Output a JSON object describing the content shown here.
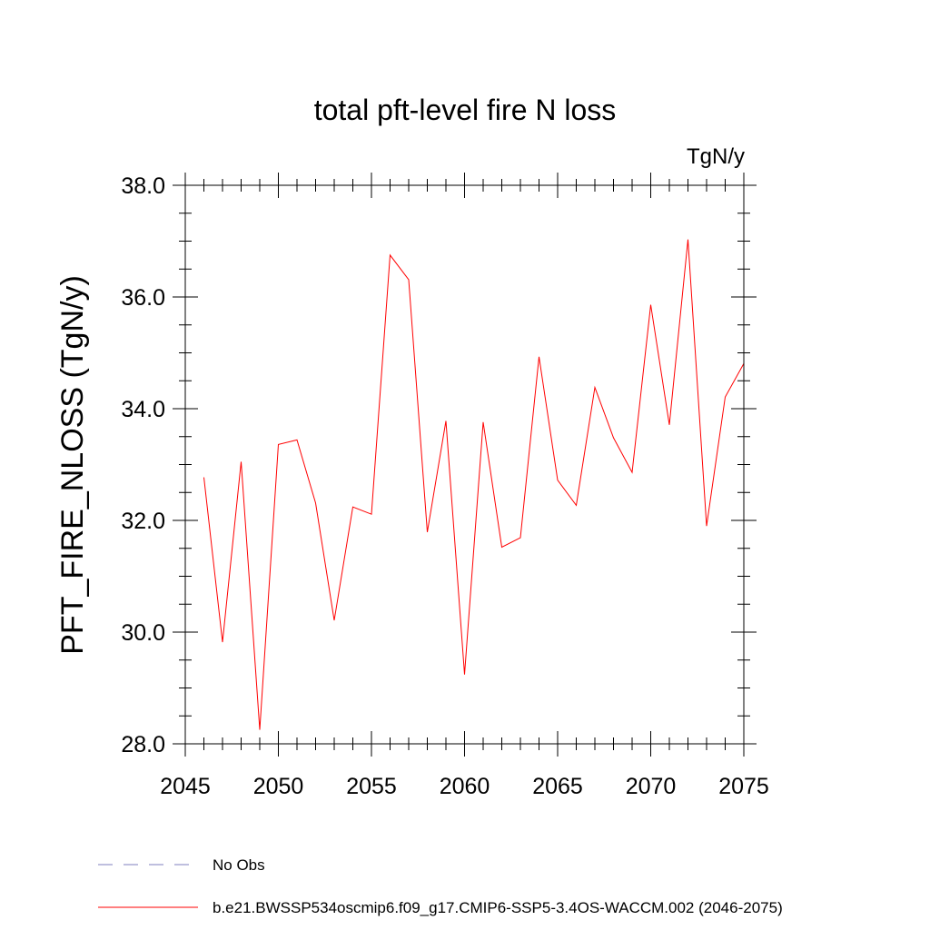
{
  "chart_data": {
    "type": "line",
    "title": "total pft-level fire N loss",
    "units_label": "TgN/y",
    "xlabel": "",
    "ylabel": "PFT_FIRE_NLOSS  (TgN/y)",
    "xlim": [
      2045,
      2075
    ],
    "ylim": [
      28.0,
      38.0
    ],
    "x_ticks": [
      "2045",
      "2050",
      "2055",
      "2060",
      "2065",
      "2070",
      "2075"
    ],
    "y_ticks": [
      "28.0",
      "30.0",
      "32.0",
      "34.0",
      "36.0",
      "38.0"
    ],
    "grid": false,
    "legend_placement": "bottom",
    "series": [
      {
        "name": "b.e21.BWSSP534oscmip6.f09_g17.CMIP6-SSP5-3.4OS-WACCM.002 (2046-2075)",
        "color": "#ff0000",
        "dash": "solid",
        "x": [
          2046,
          2047,
          2048,
          2049,
          2050,
          2051,
          2052,
          2053,
          2054,
          2055,
          2056,
          2057,
          2058,
          2059,
          2060,
          2061,
          2062,
          2063,
          2064,
          2065,
          2066,
          2067,
          2068,
          2069,
          2070,
          2071,
          2072,
          2073,
          2074,
          2075
        ],
        "values": [
          32.77,
          29.82,
          33.05,
          28.25,
          33.36,
          33.44,
          32.31,
          30.21,
          32.24,
          32.11,
          36.75,
          36.31,
          31.79,
          33.78,
          29.24,
          33.76,
          31.52,
          31.69,
          34.93,
          32.72,
          32.27,
          34.38,
          33.48,
          32.86,
          35.86,
          33.71,
          37.03,
          31.9,
          34.21,
          34.81
        ]
      }
    ],
    "legend": [
      {
        "label": "No Obs",
        "color": "#7f7fbf",
        "dash": "dashed"
      },
      {
        "label": "b.e21.BWSSP534oscmip6.f09_g17.CMIP6-SSP5-3.4OS-WACCM.002 (2046-2075)",
        "color": "#ff0000",
        "dash": "solid"
      }
    ]
  }
}
